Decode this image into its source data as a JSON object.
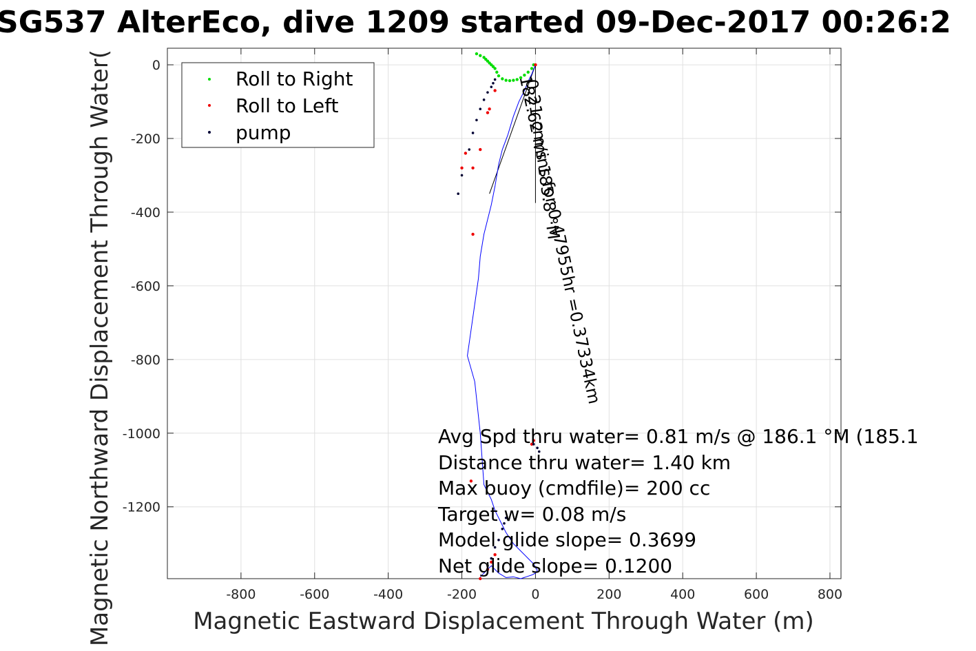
{
  "chart_data": {
    "type": "scatter",
    "title": "SG537 AlterEco, dive 1209 started 09-Dec-2017 00:26:2",
    "xlabel": "Magnetic Eastward Displacement Through Water (m)",
    "ylabel": "Magnetic Northward Displacement Through Water(",
    "xlim": [
      -1000,
      830
    ],
    "ylim": [
      -1395,
      45
    ],
    "x_ticks": [
      -800,
      -600,
      -400,
      -200,
      0,
      200,
      400,
      600,
      800
    ],
    "y_ticks": [
      0,
      -200,
      -400,
      -600,
      -800,
      -1000,
      -1200
    ],
    "grid": true,
    "legend": {
      "position": "top-left",
      "entries": [
        "Roll to Right",
        "Roll to Left",
        "pump"
      ]
    },
    "colors": {
      "roll_right": "#00dd00",
      "roll_left": "#ee0000",
      "pump": "#000033",
      "track": "#0000ff",
      "track_end": "#cc00cc",
      "grid": "#e0e0e0",
      "axis": "#262626",
      "current_line": "#000000"
    },
    "track": {
      "x": [
        0,
        -5,
        -10,
        -20,
        -30,
        -45,
        -60,
        -75,
        -90,
        -100,
        -105,
        -110,
        -115,
        -120,
        -125,
        -130,
        -135,
        -140,
        -150,
        -155,
        -165,
        -175,
        -185,
        -165,
        -150,
        -140,
        -130,
        -120,
        -110,
        -95,
        -80,
        -60,
        -40,
        -20,
        -5,
        0,
        5,
        0,
        -10,
        -25,
        -40,
        -60,
        -80,
        -100,
        -110,
        -120,
        -135,
        -150
      ],
      "y": [
        0,
        -12,
        -25,
        -45,
        -70,
        -100,
        -140,
        -190,
        -230,
        -270,
        -300,
        -330,
        -355,
        -380,
        -400,
        -420,
        -440,
        -460,
        -520,
        -580,
        -650,
        -720,
        -790,
        -860,
        -1000,
        -1140,
        -1160,
        -1180,
        -1210,
        -1240,
        -1270,
        -1300,
        -1320,
        -1340,
        -1355,
        -1365,
        -1372,
        -1380,
        -1385,
        -1390,
        -1395,
        -1390,
        -1392,
        -1380,
        -1370,
        -1360,
        -1375,
        -1390
      ]
    },
    "roll_right_points": {
      "x": [
        -5,
        -10,
        -20,
        -30,
        -40,
        -50,
        -60,
        -70,
        -80,
        -90,
        -100,
        -105,
        -110,
        -115,
        -120,
        -125,
        -130,
        -135,
        -140,
        -150,
        -160
      ],
      "y": [
        0,
        -10,
        -20,
        -28,
        -35,
        -40,
        -42,
        -43,
        -42,
        -38,
        -30,
        -20,
        -10,
        -5,
        0,
        5,
        10,
        15,
        20,
        25,
        30
      ]
    },
    "roll_left_points": {
      "x": [
        0,
        -110,
        -125,
        -130,
        -150,
        -170,
        -190,
        -200,
        -170,
        -175,
        -110,
        -5,
        -10,
        -120,
        -130,
        -150
      ],
      "y": [
        0,
        -70,
        -120,
        -130,
        -230,
        -280,
        -240,
        -280,
        -460,
        -1130,
        -1330,
        -1020,
        -1030,
        -1350,
        -1370,
        -1395
      ]
    },
    "pump_points": {
      "x": [
        -110,
        -115,
        -120,
        -130,
        -140,
        -150,
        -160,
        -170,
        -180,
        -200,
        -210,
        -5,
        5,
        10,
        -80,
        -85,
        -90,
        -100,
        -110,
        -120,
        -130
      ],
      "y": [
        -40,
        -50,
        -60,
        -75,
        -95,
        -120,
        -150,
        -185,
        -230,
        -300,
        -350,
        -1030,
        -1040,
        -1050,
        -1230,
        -1245,
        -1260,
        -1290,
        -1310,
        -1340,
        -1360
      ]
    },
    "current_vectors": [
      {
        "from": [
          0,
          0
        ],
        "to": [
          -125,
          -350
        ]
      },
      {
        "from": [
          0,
          0
        ],
        "to": [
          0,
          -375
        ]
      }
    ],
    "annotations": [
      "0.21 cm/s 185.8 °M",
      "182.62 mins for 0.47955hr =0.37334km"
    ],
    "summary": [
      "Avg Spd thru water=  0.81 m/s @ 186.1 °M (185.1",
      "Distance thru water=  1.40 km",
      "Max buoy (cmdfile)= 200 cc",
      "Target w= 0.08 m/s",
      "Model glide slope= 0.3699",
      "Net glide slope= 0.1200"
    ]
  }
}
